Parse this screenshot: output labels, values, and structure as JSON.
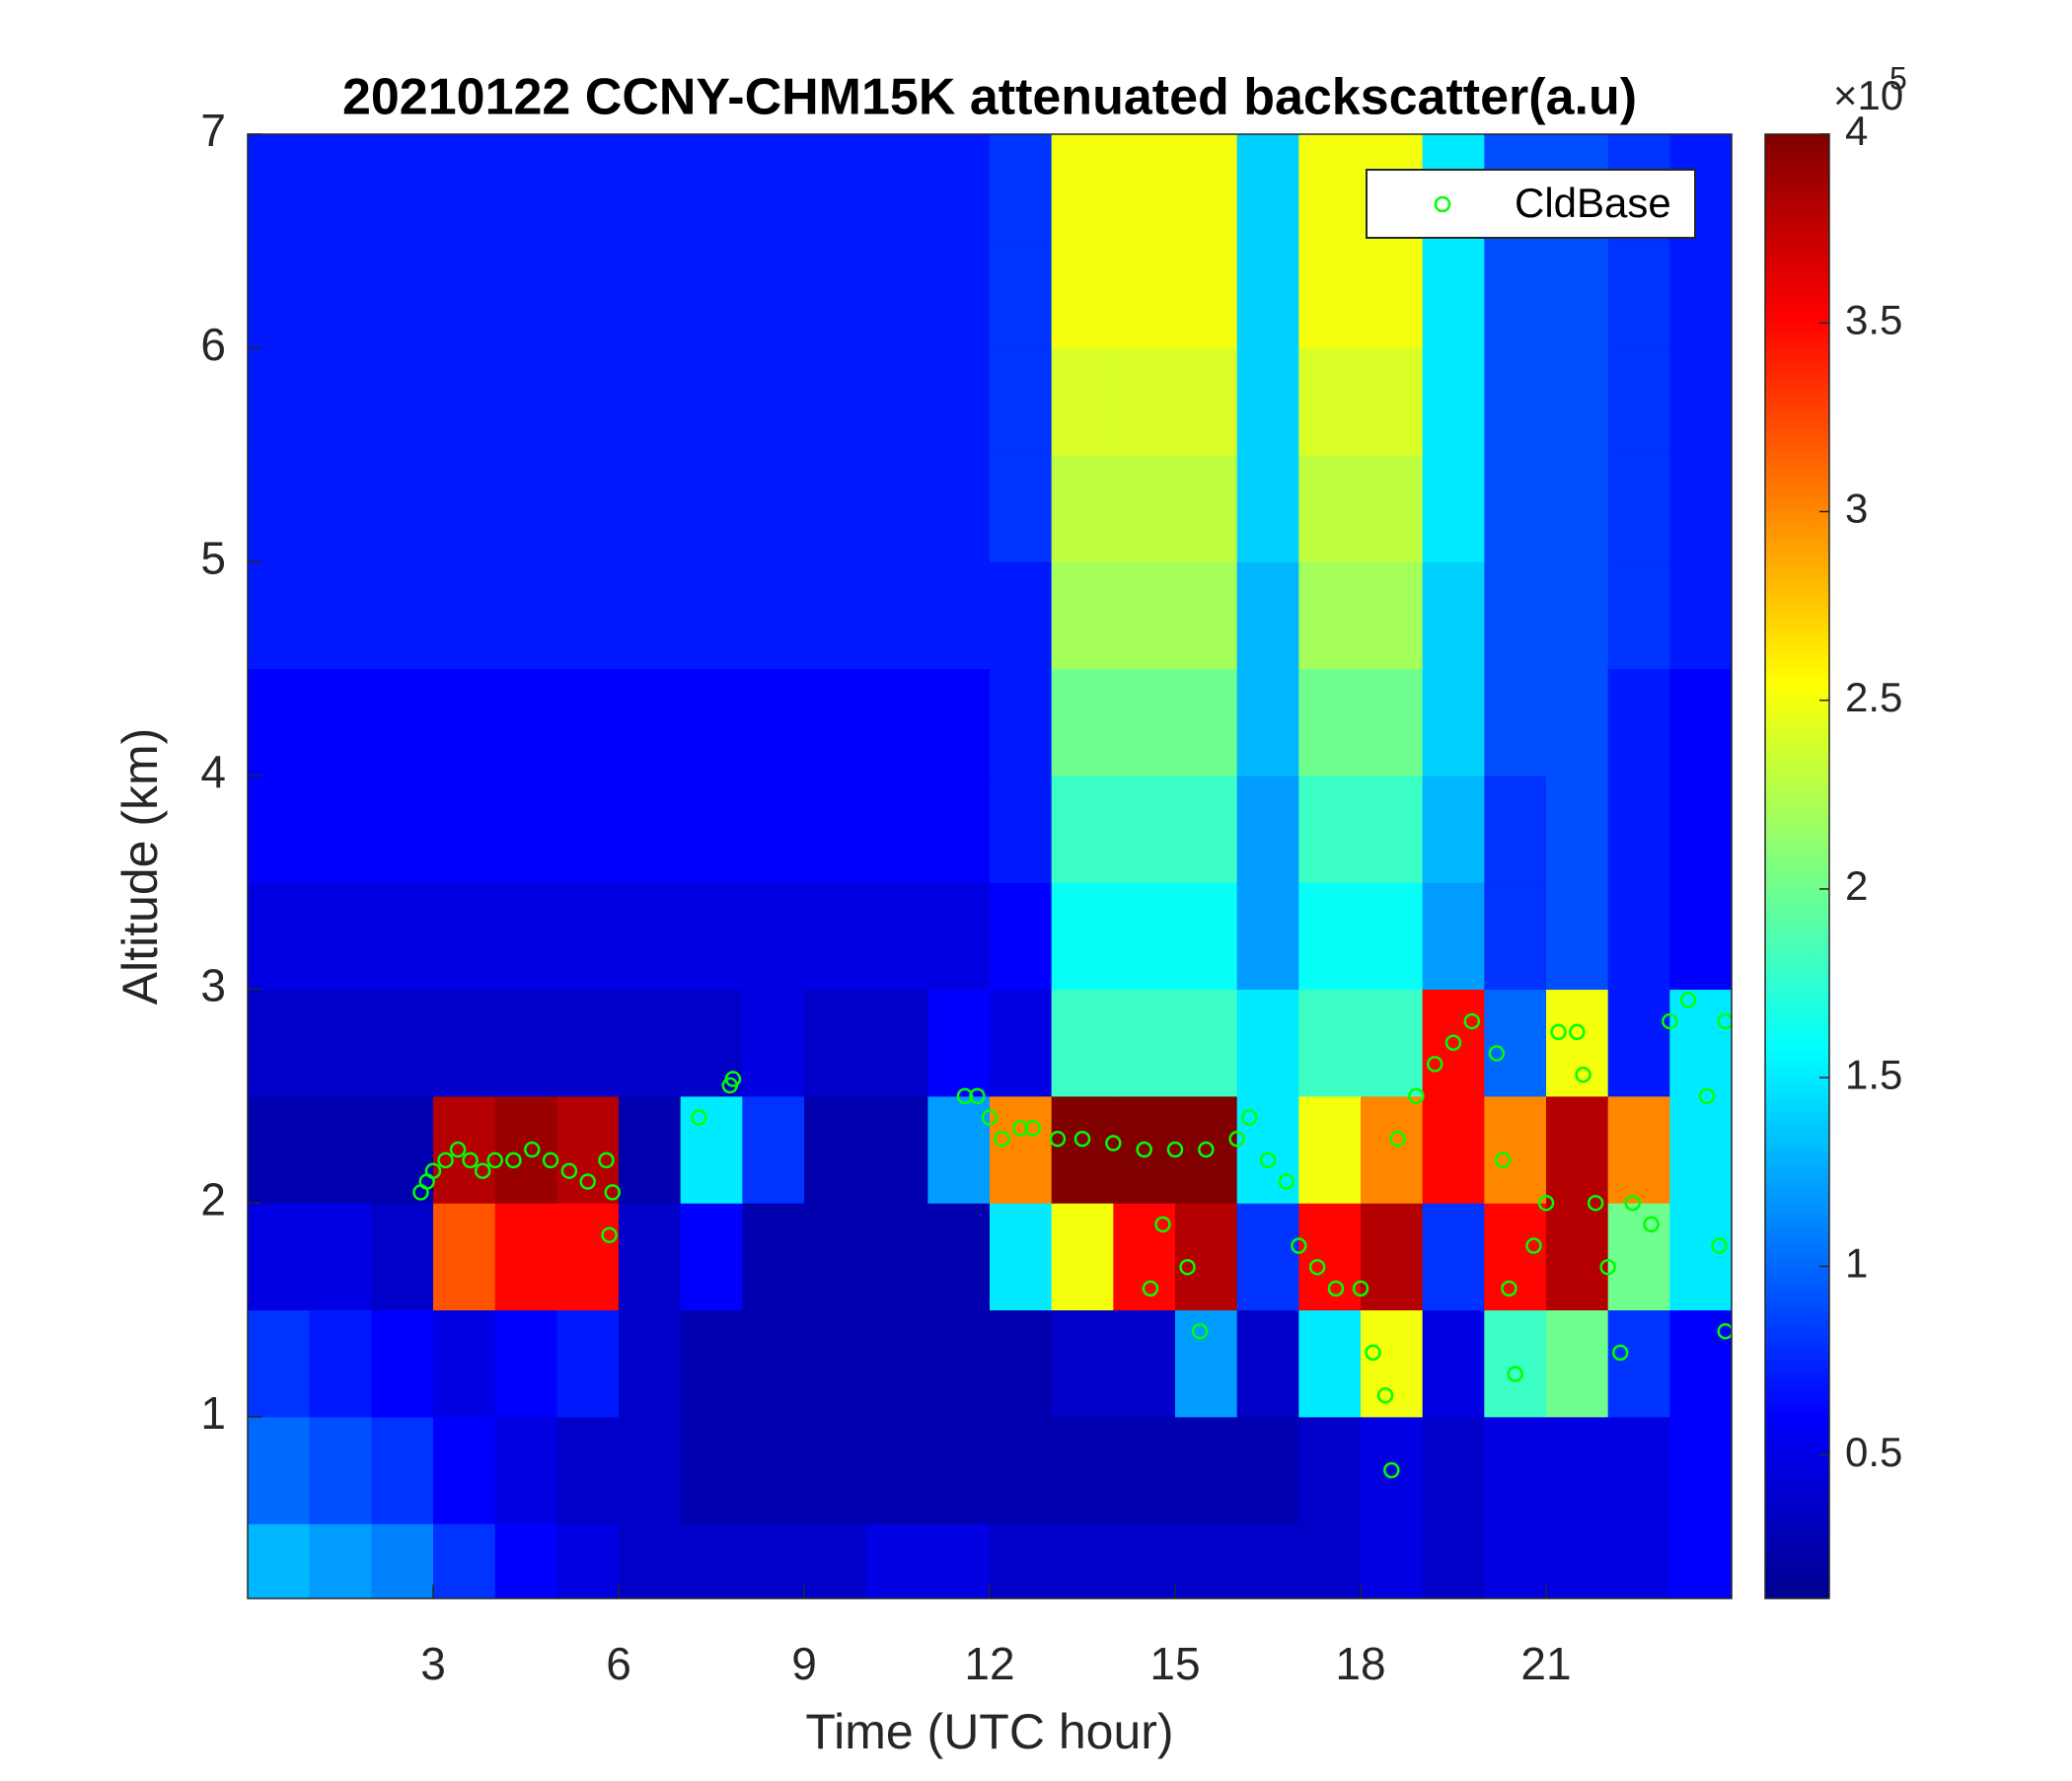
{
  "chart_data": {
    "type": "heatmap",
    "title": "20210122 CCNY-CHM15K attenuated backscatter(a.u)",
    "xlabel": "Time (UTC hour)",
    "ylabel": "Altitude (km)",
    "xlim": [
      0,
      24
    ],
    "ylim": [
      0.15,
      7
    ],
    "xticks": [
      3,
      6,
      9,
      12,
      15,
      18,
      21
    ],
    "yticks": [
      1,
      2,
      3,
      4,
      5,
      6,
      7
    ],
    "colormap": "jet",
    "clim": [
      0.12,
      4
    ],
    "cticks": [
      0.5,
      1,
      1.5,
      2,
      2.5,
      3,
      3.5,
      4
    ],
    "colorbar_scale_base": "×10",
    "colorbar_scale_exponent": "5",
    "x_edges": [
      0,
      1,
      2,
      3,
      4,
      5,
      6,
      7,
      8,
      9,
      10,
      11,
      12,
      13,
      14,
      15,
      16,
      17,
      18,
      19,
      20,
      21,
      22,
      23,
      24
    ],
    "y_edges": [
      0.15,
      0.5,
      1,
      1.5,
      2,
      2.5,
      3,
      3.5,
      4,
      4.5,
      5,
      5.5,
      6,
      6.5,
      7
    ],
    "z": [
      [
        1.3,
        1.2,
        1.1,
        0.8,
        0.6,
        0.5,
        0.4,
        0.4,
        0.4,
        0.4,
        0.5,
        0.5,
        0.4,
        0.4,
        0.4,
        0.4,
        0.4,
        0.4,
        0.5,
        0.4,
        0.5,
        0.5,
        0.5,
        0.6
      ],
      [
        1.0,
        0.9,
        0.8,
        0.6,
        0.5,
        0.4,
        0.4,
        0.3,
        0.3,
        0.3,
        0.3,
        0.3,
        0.3,
        0.3,
        0.3,
        0.3,
        0.3,
        0.4,
        0.5,
        0.4,
        0.5,
        0.5,
        0.5,
        0.6
      ],
      [
        0.8,
        0.7,
        0.6,
        0.5,
        0.6,
        0.7,
        0.4,
        0.3,
        0.3,
        0.3,
        0.3,
        0.3,
        0.3,
        0.4,
        0.4,
        1.2,
        0.4,
        1.5,
        2.5,
        0.5,
        1.8,
        2.0,
        0.8,
        0.6
      ],
      [
        0.5,
        0.5,
        0.4,
        3.2,
        3.5,
        3.5,
        0.4,
        0.6,
        0.3,
        0.3,
        0.3,
        0.3,
        1.5,
        2.5,
        3.5,
        3.8,
        0.8,
        3.5,
        3.8,
        0.8,
        3.5,
        3.8,
        2.0,
        1.5
      ],
      [
        0.3,
        0.3,
        0.3,
        3.8,
        3.9,
        3.8,
        0.3,
        1.5,
        0.8,
        0.3,
        0.3,
        1.2,
        3.0,
        4.0,
        4.0,
        4.0,
        1.5,
        2.5,
        3.0,
        3.5,
        3.0,
        3.8,
        3.0,
        1.5
      ],
      [
        0.4,
        0.4,
        0.4,
        0.4,
        0.4,
        0.4,
        0.4,
        0.4,
        0.5,
        0.4,
        0.4,
        0.6,
        0.5,
        1.8,
        1.8,
        1.8,
        1.5,
        1.8,
        1.8,
        3.5,
        1.0,
        2.5,
        0.7,
        1.5
      ],
      [
        0.5,
        0.5,
        0.5,
        0.5,
        0.5,
        0.5,
        0.5,
        0.5,
        0.5,
        0.5,
        0.5,
        0.5,
        0.6,
        1.6,
        1.6,
        1.6,
        1.2,
        1.6,
        1.6,
        1.2,
        0.8,
        0.9,
        0.7,
        0.6
      ],
      [
        0.6,
        0.6,
        0.6,
        0.6,
        0.6,
        0.6,
        0.6,
        0.6,
        0.6,
        0.6,
        0.6,
        0.6,
        0.7,
        1.8,
        1.8,
        1.8,
        1.2,
        1.8,
        1.8,
        1.3,
        0.8,
        0.9,
        0.7,
        0.6
      ],
      [
        0.6,
        0.6,
        0.6,
        0.6,
        0.6,
        0.6,
        0.6,
        0.6,
        0.6,
        0.6,
        0.6,
        0.6,
        0.7,
        2.0,
        2.0,
        2.0,
        1.3,
        2.0,
        2.0,
        1.4,
        0.9,
        0.9,
        0.7,
        0.6
      ],
      [
        0.7,
        0.7,
        0.7,
        0.7,
        0.7,
        0.7,
        0.7,
        0.7,
        0.7,
        0.7,
        0.7,
        0.7,
        0.7,
        2.2,
        2.2,
        2.2,
        1.3,
        2.2,
        2.2,
        1.4,
        0.9,
        0.9,
        0.8,
        0.7
      ],
      [
        0.7,
        0.7,
        0.7,
        0.7,
        0.7,
        0.7,
        0.7,
        0.7,
        0.7,
        0.7,
        0.7,
        0.7,
        0.8,
        2.3,
        2.3,
        2.3,
        1.4,
        2.3,
        2.3,
        1.5,
        0.9,
        0.9,
        0.8,
        0.7
      ],
      [
        0.7,
        0.7,
        0.7,
        0.7,
        0.7,
        0.7,
        0.7,
        0.7,
        0.7,
        0.7,
        0.7,
        0.7,
        0.8,
        2.4,
        2.4,
        2.4,
        1.4,
        2.4,
        2.4,
        1.5,
        0.9,
        0.9,
        0.8,
        0.7
      ],
      [
        0.7,
        0.7,
        0.7,
        0.7,
        0.7,
        0.7,
        0.7,
        0.7,
        0.7,
        0.7,
        0.7,
        0.7,
        0.8,
        2.5,
        2.5,
        2.5,
        1.4,
        2.5,
        2.5,
        1.5,
        0.9,
        0.9,
        0.8,
        0.7
      ],
      [
        0.7,
        0.7,
        0.7,
        0.7,
        0.7,
        0.7,
        0.7,
        0.7,
        0.7,
        0.7,
        0.7,
        0.7,
        0.8,
        2.5,
        2.5,
        2.5,
        1.4,
        2.5,
        2.5,
        1.5,
        0.9,
        0.9,
        0.8,
        0.7
      ]
    ],
    "legend": "upper right",
    "series": [
      {
        "name": "CldBase",
        "type": "scatter",
        "color": "#00ff00",
        "x": [
          2.8,
          2.9,
          3.0,
          3.2,
          3.4,
          3.6,
          3.8,
          4.0,
          4.3,
          4.6,
          4.9,
          5.2,
          5.5,
          5.8,
          5.9,
          5.85,
          7.3,
          7.8,
          7.85,
          11.6,
          11.8,
          12.0,
          12.2,
          12.5,
          12.7,
          13.1,
          13.5,
          14.0,
          14.5,
          15.0,
          15.5,
          16.0,
          16.2,
          14.8,
          15.2,
          14.6,
          15.4,
          16.5,
          16.8,
          17.0,
          17.3,
          17.6,
          18.0,
          18.2,
          18.4,
          18.6,
          18.9,
          19.2,
          19.5,
          19.8,
          18.5,
          20.2,
          20.3,
          20.4,
          20.5,
          20.8,
          21.0,
          21.2,
          21.5,
          21.6,
          21.8,
          22.0,
          22.2,
          22.4,
          22.7,
          23.0,
          23.3,
          23.6,
          23.8,
          23.9,
          23.9
        ],
        "y": [
          2.05,
          2.1,
          2.15,
          2.2,
          2.25,
          2.2,
          2.15,
          2.2,
          2.2,
          2.25,
          2.2,
          2.15,
          2.1,
          2.2,
          2.05,
          1.85,
          2.4,
          2.55,
          2.58,
          2.5,
          2.5,
          2.4,
          2.3,
          2.35,
          2.35,
          2.3,
          2.3,
          2.28,
          2.25,
          2.25,
          2.25,
          2.3,
          2.4,
          1.9,
          1.7,
          1.6,
          1.4,
          2.2,
          2.1,
          1.8,
          1.7,
          1.6,
          1.6,
          1.3,
          1.1,
          2.3,
          2.5,
          2.65,
          2.75,
          2.85,
          0.75,
          2.7,
          2.2,
          1.6,
          1.2,
          1.8,
          2.0,
          2.8,
          2.8,
          2.6,
          2.0,
          1.7,
          1.3,
          2.0,
          1.9,
          2.85,
          2.95,
          2.5,
          1.8,
          1.4,
          2.85
        ]
      }
    ]
  }
}
